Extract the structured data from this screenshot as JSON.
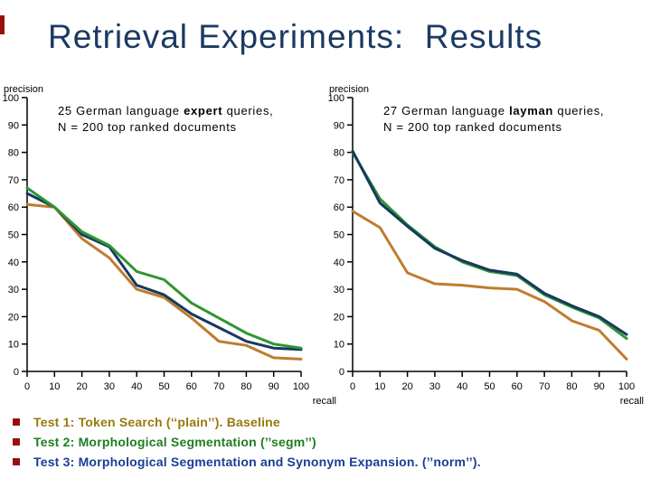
{
  "slide": {
    "title": "Retrieval Experiments:  Results",
    "colors": {
      "title": "#1B3A63",
      "accent_bar": "#990F0F",
      "bullet_marker": "#990F0F",
      "axis": "#000000",
      "background": "#FFFFFF"
    }
  },
  "chart_data": [
    {
      "type": "line",
      "title": "25 German language expert queries, N = 200 top ranked documents",
      "annotation": {
        "pre": "25 German language ",
        "bold": "expert",
        "post": " queries,",
        "line2": "N = 200 top ranked documents"
      },
      "xlabel": "recall",
      "ylabel": "precision",
      "xlim": [
        0,
        100
      ],
      "ylim": [
        0,
        100
      ],
      "grid": false,
      "x_ticks": [
        0,
        10,
        20,
        30,
        40,
        50,
        60,
        70,
        80,
        90,
        100
      ],
      "y_ticks": [
        100,
        90,
        80,
        70,
        60,
        50,
        40,
        30,
        20,
        10,
        0
      ],
      "x": [
        0,
        10,
        20,
        30,
        40,
        50,
        60,
        70,
        80,
        90,
        100
      ],
      "series": [
        {
          "name": "Test 1: Token Search (plain)",
          "color": "#BF7C2F",
          "values": [
            61,
            60,
            48.5,
            41.5,
            30,
            27,
            19.5,
            11,
            9.5,
            5,
            4.5
          ]
        },
        {
          "name": "Test 3: Morphological Segmentation and Synonym Expansion (norm)",
          "color": "#17395F",
          "values": [
            65,
            60,
            50,
            45.5,
            31.5,
            28,
            21,
            16,
            11,
            8.5,
            8
          ]
        },
        {
          "name": "Test 2: Morphological Segmentation (segm)",
          "color": "#2E9632",
          "values": [
            67,
            60,
            51,
            46,
            36.5,
            33.5,
            25,
            19.5,
            14,
            10,
            8.5
          ]
        }
      ]
    },
    {
      "type": "line",
      "title": "27 German language layman queries, N = 200 top ranked documents",
      "annotation": {
        "pre": "27 German language ",
        "bold": "layman",
        "post": " queries,",
        "line2": "N = 200 top ranked documents"
      },
      "xlabel": "recall",
      "ylabel": "precision",
      "xlim": [
        0,
        100
      ],
      "ylim": [
        0,
        100
      ],
      "grid": false,
      "x_ticks": [
        0,
        10,
        20,
        30,
        40,
        50,
        60,
        70,
        80,
        90,
        100
      ],
      "y_ticks": [
        100,
        90,
        80,
        70,
        60,
        50,
        40,
        30,
        20,
        10,
        0
      ],
      "x": [
        0,
        10,
        20,
        30,
        40,
        50,
        60,
        70,
        80,
        90,
        100
      ],
      "series": [
        {
          "name": "Test 1: Token Search (plain)",
          "color": "#BF7C2F",
          "values": [
            58.5,
            52.5,
            36,
            32,
            31.5,
            30.5,
            30,
            25.5,
            18.5,
            15,
            4.5
          ]
        },
        {
          "name": "Test 2: Morphological Segmentation (segm)",
          "color": "#2E9632",
          "values": [
            80,
            63,
            53.5,
            45.5,
            40,
            36.5,
            35,
            28,
            23.5,
            19.5,
            12
          ]
        },
        {
          "name": "Test 3: Morphological Segmentation and Synonym Expansion (norm)",
          "color": "#17395F",
          "values": [
            80.5,
            61.5,
            53,
            45,
            40.5,
            37,
            35.5,
            28.5,
            24,
            20,
            13.5
          ]
        }
      ]
    }
  ],
  "bullets": [
    {
      "text": "Test 1: Token Search (‘‘plain’’). Baseline",
      "color": "#967A0A"
    },
    {
      "text": "Test 2: Morphological Segmentation (’’segm’’)",
      "color": "#1E7E22"
    },
    {
      "text": "Test 3: Morphological Segmentation and Synonym Expansion. (’’norm’’).",
      "color": "#1A3E94"
    }
  ]
}
